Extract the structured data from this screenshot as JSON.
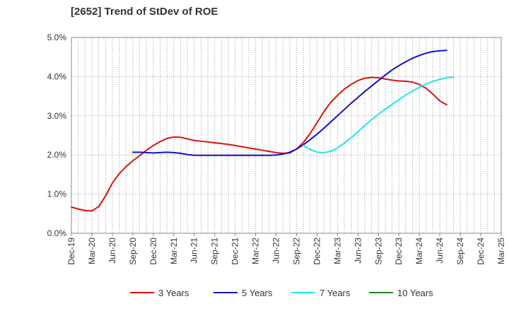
{
  "chart_data": {
    "type": "line",
    "title": "[2652]  Trend of StDev of ROE",
    "xlabel": "",
    "ylabel": "",
    "ylim": [
      0,
      5
    ],
    "y_ticks": [
      0,
      1,
      2,
      3,
      4,
      5
    ],
    "y_tick_labels": [
      "0.0%",
      "1.0%",
      "2.0%",
      "3.0%",
      "4.0%",
      "5.0%"
    ],
    "x_tick_labels": [
      "Dec-19",
      "Mar-20",
      "Jun-20",
      "Sep-20",
      "Dec-20",
      "Mar-21",
      "Jun-21",
      "Sep-21",
      "Dec-21",
      "Mar-22",
      "Jun-22",
      "Sep-22",
      "Dec-22",
      "Mar-23",
      "Jun-23",
      "Sep-23",
      "Dec-23",
      "Mar-24",
      "Jun-24",
      "Sep-24",
      "Dec-24",
      "Mar-25"
    ],
    "x_quarters_total": 63,
    "grid": true,
    "legend_position": "bottom",
    "series": [
      {
        "name": "3 Years",
        "color": "#dd1111",
        "points": [
          [
            0,
            0.67
          ],
          [
            1,
            0.62
          ],
          [
            2,
            0.58
          ],
          [
            3,
            0.57
          ],
          [
            4,
            0.68
          ],
          [
            5,
            0.95
          ],
          [
            6,
            1.28
          ],
          [
            7,
            1.52
          ],
          [
            8,
            1.7
          ],
          [
            9,
            1.85
          ],
          [
            10,
            1.98
          ],
          [
            11,
            2.12
          ],
          [
            12,
            2.24
          ],
          [
            13,
            2.34
          ],
          [
            14,
            2.42
          ],
          [
            15,
            2.46
          ],
          [
            16,
            2.45
          ],
          [
            17,
            2.41
          ],
          [
            18,
            2.37
          ],
          [
            19,
            2.35
          ],
          [
            20,
            2.33
          ],
          [
            21,
            2.31
          ],
          [
            22,
            2.29
          ],
          [
            23,
            2.27
          ],
          [
            24,
            2.24
          ],
          [
            25,
            2.21
          ],
          [
            26,
            2.18
          ],
          [
            27,
            2.15
          ],
          [
            28,
            2.12
          ],
          [
            29,
            2.09
          ],
          [
            30,
            2.06
          ],
          [
            31,
            2.04
          ],
          [
            32,
            2.05
          ],
          [
            33,
            2.15
          ],
          [
            34,
            2.32
          ],
          [
            35,
            2.55
          ],
          [
            36,
            2.82
          ],
          [
            37,
            3.1
          ],
          [
            38,
            3.34
          ],
          [
            39,
            3.52
          ],
          [
            40,
            3.68
          ],
          [
            41,
            3.8
          ],
          [
            42,
            3.9
          ],
          [
            43,
            3.96
          ],
          [
            44,
            3.98
          ],
          [
            45,
            3.97
          ],
          [
            46,
            3.94
          ],
          [
            47,
            3.91
          ],
          [
            48,
            3.89
          ],
          [
            49,
            3.88
          ],
          [
            50,
            3.86
          ],
          [
            51,
            3.8
          ],
          [
            52,
            3.7
          ],
          [
            53,
            3.55
          ],
          [
            54,
            3.38
          ],
          [
            55,
            3.28
          ]
        ]
      },
      {
        "name": "5 Years",
        "color": "#1111cc",
        "points": [
          [
            9,
            2.07
          ],
          [
            10,
            2.07
          ],
          [
            11,
            2.06
          ],
          [
            12,
            2.05
          ],
          [
            13,
            2.06
          ],
          [
            14,
            2.07
          ],
          [
            15,
            2.06
          ],
          [
            16,
            2.04
          ],
          [
            17,
            2.01
          ],
          [
            18,
            1.99
          ],
          [
            19,
            1.99
          ],
          [
            20,
            1.99
          ],
          [
            21,
            1.99
          ],
          [
            22,
            1.99
          ],
          [
            23,
            1.99
          ],
          [
            24,
            1.99
          ],
          [
            25,
            1.99
          ],
          [
            26,
            1.99
          ],
          [
            27,
            1.99
          ],
          [
            28,
            1.99
          ],
          [
            29,
            1.99
          ],
          [
            30,
            2.0
          ],
          [
            31,
            2.02
          ],
          [
            32,
            2.07
          ],
          [
            33,
            2.15
          ],
          [
            34,
            2.26
          ],
          [
            35,
            2.39
          ],
          [
            36,
            2.53
          ],
          [
            37,
            2.68
          ],
          [
            38,
            2.84
          ],
          [
            39,
            3.0
          ],
          [
            40,
            3.16
          ],
          [
            41,
            3.32
          ],
          [
            42,
            3.47
          ],
          [
            43,
            3.62
          ],
          [
            44,
            3.76
          ],
          [
            45,
            3.9
          ],
          [
            46,
            4.04
          ],
          [
            47,
            4.17
          ],
          [
            48,
            4.28
          ],
          [
            49,
            4.38
          ],
          [
            50,
            4.47
          ],
          [
            51,
            4.54
          ],
          [
            52,
            4.6
          ],
          [
            53,
            4.64
          ],
          [
            54,
            4.66
          ],
          [
            55,
            4.67
          ]
        ]
      },
      {
        "name": "7 Years",
        "color": "#22e5e5",
        "points": [
          [
            34,
            2.24
          ],
          [
            35,
            2.14
          ],
          [
            36,
            2.07
          ],
          [
            37,
            2.06
          ],
          [
            38,
            2.09
          ],
          [
            39,
            2.18
          ],
          [
            40,
            2.3
          ],
          [
            41,
            2.44
          ],
          [
            42,
            2.59
          ],
          [
            43,
            2.75
          ],
          [
            44,
            2.9
          ],
          [
            45,
            3.04
          ],
          [
            46,
            3.17
          ],
          [
            47,
            3.29
          ],
          [
            48,
            3.41
          ],
          [
            49,
            3.53
          ],
          [
            50,
            3.63
          ],
          [
            51,
            3.73
          ],
          [
            52,
            3.81
          ],
          [
            53,
            3.88
          ],
          [
            54,
            3.93
          ],
          [
            55,
            3.97
          ],
          [
            56,
            3.99
          ]
        ]
      },
      {
        "name": "10 Years",
        "color": "#228822",
        "points": []
      }
    ]
  }
}
